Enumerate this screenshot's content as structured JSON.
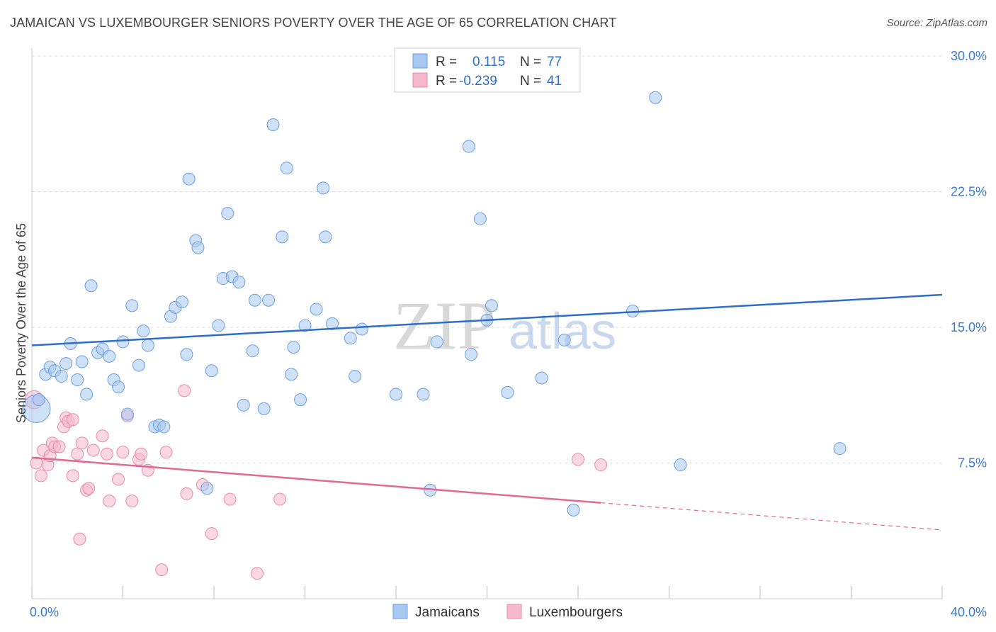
{
  "title": "JAMAICAN VS LUXEMBOURGER SENIORS POVERTY OVER THE AGE OF 65 CORRELATION CHART",
  "source": "Source: ZipAtlas.com",
  "watermark": {
    "zip": "ZIP",
    "atlas": "atlas"
  },
  "colors": {
    "blue_fill": "#a8c8f0",
    "blue_stroke": "#6a9ee0",
    "blue_line": "#2d6fc8",
    "pink_fill": "#f5b8cc",
    "pink_stroke": "#e88aa8",
    "pink_line": "#e06a94",
    "tick_text": "#3a78d0",
    "grid": "#dddddd"
  },
  "legend": {
    "rows": [
      {
        "r_label": "R =",
        "r_value": "0.115",
        "n_label": "N =",
        "n_value": "77"
      },
      {
        "r_label": "R =",
        "r_value": "-0.239",
        "n_label": "N =",
        "n_value": "41"
      }
    ]
  },
  "bottom_legend": [
    "Jamaicans",
    "Luxembourgers"
  ],
  "chart_data": {
    "type": "scatter",
    "title": "JAMAICAN VS LUXEMBOURGER SENIORS POVERTY OVER THE AGE OF 65 CORRELATION CHART",
    "xlabel": "",
    "ylabel": "Seniors Poverty Over the Age of 65",
    "xlim": [
      0,
      40
    ],
    "ylim": [
      0,
      30
    ],
    "x_tick_labels": [
      "0.0%",
      "40.0%"
    ],
    "y_ticks": [
      7.5,
      15.0,
      22.5,
      30.0
    ],
    "y_tick_labels": [
      "7.5%",
      "15.0%",
      "22.5%",
      "30.0%"
    ],
    "grid": true,
    "legend_position": "top-center",
    "series": [
      {
        "name": "Jamaicans",
        "r": 0.115,
        "n": 77,
        "trend": {
          "x0": 0,
          "y0": 14.0,
          "x1": 40,
          "y1": 16.8
        },
        "points": [
          [
            0.2,
            10.5,
            3
          ],
          [
            0.3,
            11.0,
            1
          ],
          [
            0.6,
            12.4,
            1
          ],
          [
            0.8,
            12.8,
            1
          ],
          [
            1.0,
            12.6,
            1
          ],
          [
            1.3,
            12.3,
            1
          ],
          [
            1.5,
            13.0,
            1
          ],
          [
            1.7,
            14.1,
            1
          ],
          [
            2.0,
            12.1,
            1
          ],
          [
            2.2,
            13.1,
            1
          ],
          [
            2.4,
            11.3,
            1
          ],
          [
            2.6,
            17.3,
            1
          ],
          [
            2.9,
            13.6,
            1
          ],
          [
            3.1,
            13.8,
            1
          ],
          [
            3.4,
            13.4,
            1
          ],
          [
            3.6,
            12.1,
            1
          ],
          [
            3.8,
            11.7,
            1
          ],
          [
            4.0,
            14.2,
            1
          ],
          [
            4.2,
            10.2,
            1
          ],
          [
            4.4,
            16.2,
            1
          ],
          [
            4.7,
            12.9,
            1
          ],
          [
            4.9,
            14.8,
            1
          ],
          [
            5.1,
            14.0,
            1
          ],
          [
            5.4,
            9.5,
            1
          ],
          [
            5.6,
            9.6,
            1
          ],
          [
            5.8,
            9.5,
            1
          ],
          [
            6.1,
            15.6,
            1
          ],
          [
            6.3,
            16.1,
            1
          ],
          [
            6.6,
            16.4,
            1
          ],
          [
            6.8,
            13.5,
            1
          ],
          [
            6.9,
            23.2,
            1
          ],
          [
            7.2,
            19.8,
            1
          ],
          [
            7.3,
            19.4,
            1
          ],
          [
            7.7,
            6.1,
            1
          ],
          [
            7.9,
            12.6,
            1
          ],
          [
            8.2,
            15.1,
            1
          ],
          [
            8.4,
            17.7,
            1
          ],
          [
            8.6,
            21.3,
            1
          ],
          [
            8.8,
            17.8,
            1
          ],
          [
            9.1,
            17.5,
            1
          ],
          [
            9.3,
            10.7,
            1
          ],
          [
            9.7,
            13.7,
            1
          ],
          [
            9.8,
            16.5,
            1
          ],
          [
            10.2,
            10.5,
            1
          ],
          [
            10.4,
            16.5,
            1
          ],
          [
            10.6,
            26.2,
            1
          ],
          [
            11.0,
            20.0,
            1
          ],
          [
            11.2,
            23.8,
            1
          ],
          [
            11.4,
            12.4,
            1
          ],
          [
            11.5,
            13.9,
            1
          ],
          [
            11.8,
            11.0,
            1
          ],
          [
            12.0,
            15.1,
            1
          ],
          [
            12.5,
            16.0,
            1
          ],
          [
            12.8,
            22.7,
            1
          ],
          [
            12.9,
            20.0,
            1
          ],
          [
            13.2,
            15.2,
            1
          ],
          [
            14.0,
            14.4,
            1
          ],
          [
            14.2,
            12.3,
            1
          ],
          [
            14.5,
            14.9,
            1
          ],
          [
            16.0,
            11.3,
            1
          ],
          [
            17.2,
            11.3,
            1
          ],
          [
            17.5,
            6.0,
            1
          ],
          [
            17.8,
            14.2,
            1
          ],
          [
            19.2,
            25.0,
            1
          ],
          [
            19.3,
            13.5,
            1
          ],
          [
            19.7,
            21.0,
            1
          ],
          [
            20.0,
            15.4,
            1
          ],
          [
            20.2,
            16.2,
            1
          ],
          [
            20.9,
            11.4,
            1
          ],
          [
            22.4,
            12.2,
            1
          ],
          [
            23.4,
            14.3,
            1
          ],
          [
            23.8,
            4.9,
            1
          ],
          [
            26.4,
            15.9,
            1
          ],
          [
            27.4,
            27.7,
            1
          ],
          [
            28.5,
            7.4,
            1
          ],
          [
            35.5,
            8.3,
            1
          ],
          [
            21.5,
            29.9,
            1
          ]
        ]
      },
      {
        "name": "Luxembourgers",
        "r": -0.239,
        "n": 41,
        "trend": {
          "x0": 0,
          "y0": 7.8,
          "x1": 25,
          "y1": 5.3,
          "dash_x1": 40,
          "dash_y1": 3.8
        },
        "points": [
          [
            0.1,
            11.0,
            2
          ],
          [
            0.2,
            7.5,
            1
          ],
          [
            0.4,
            6.8,
            1
          ],
          [
            0.5,
            8.2,
            1
          ],
          [
            0.7,
            7.4,
            1
          ],
          [
            0.8,
            7.9,
            1
          ],
          [
            0.9,
            8.6,
            1
          ],
          [
            1.0,
            8.4,
            1
          ],
          [
            1.2,
            8.4,
            1
          ],
          [
            1.4,
            9.5,
            1
          ],
          [
            1.5,
            10.0,
            1
          ],
          [
            1.6,
            9.8,
            1
          ],
          [
            1.8,
            9.9,
            1
          ],
          [
            1.8,
            6.8,
            1
          ],
          [
            2.0,
            8.0,
            1
          ],
          [
            2.1,
            3.3,
            1
          ],
          [
            2.2,
            8.6,
            1
          ],
          [
            2.4,
            6.0,
            1
          ],
          [
            2.5,
            6.1,
            1
          ],
          [
            2.7,
            8.2,
            1
          ],
          [
            3.1,
            9.0,
            1
          ],
          [
            3.3,
            8.0,
            1
          ],
          [
            3.4,
            5.4,
            1
          ],
          [
            3.8,
            6.6,
            1
          ],
          [
            4.0,
            8.1,
            1
          ],
          [
            4.2,
            10.1,
            1
          ],
          [
            4.4,
            5.4,
            1
          ],
          [
            4.7,
            7.7,
            1
          ],
          [
            4.8,
            8.0,
            1
          ],
          [
            5.1,
            7.1,
            1
          ],
          [
            5.7,
            1.6,
            1
          ],
          [
            5.9,
            8.1,
            1
          ],
          [
            6.7,
            11.5,
            1
          ],
          [
            6.8,
            5.8,
            1
          ],
          [
            7.5,
            6.3,
            1
          ],
          [
            7.9,
            3.6,
            1
          ],
          [
            8.7,
            5.5,
            1
          ],
          [
            9.9,
            1.4,
            1
          ],
          [
            10.9,
            5.5,
            1
          ],
          [
            24.0,
            7.7,
            1
          ],
          [
            25.0,
            7.4,
            1
          ]
        ]
      }
    ]
  }
}
